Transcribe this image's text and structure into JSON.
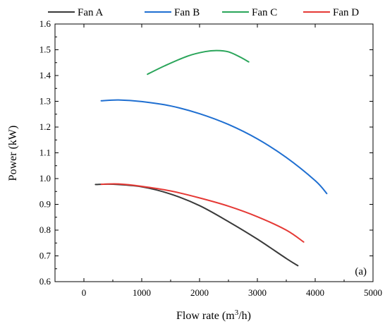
{
  "chart_data": {
    "type": "line",
    "title": "",
    "xlabel": "Flow rate (m",
    "xlabel_sup": "3",
    "xlabel_suffix": "/h)",
    "ylabel": "Power (kW)",
    "panel_label": "(a)",
    "xlim": [
      -500,
      5000
    ],
    "ylim": [
      0.6,
      1.6
    ],
    "xticks": [
      0,
      1000,
      2000,
      3000,
      4000,
      5000
    ],
    "yticks": [
      0.6,
      0.7,
      0.8,
      0.9,
      1.0,
      1.1,
      1.2,
      1.3,
      1.4,
      1.5,
      1.6
    ],
    "xtick_labels": [
      "0",
      "1000",
      "2000",
      "3000",
      "4000",
      "5000"
    ],
    "ytick_labels": [
      "0.6",
      "0.7",
      "0.8",
      "0.9",
      "1.0",
      "1.1",
      "1.2",
      "1.3",
      "1.4",
      "1.5",
      "1.6"
    ],
    "grid": false,
    "legend_position": "top",
    "series": [
      {
        "name": "Fan A",
        "color": "#3a3a3a",
        "x": [
          200,
          500,
          1000,
          1500,
          2000,
          2500,
          3000,
          3500,
          3700
        ],
        "y": [
          0.977,
          0.978,
          0.968,
          0.94,
          0.895,
          0.833,
          0.765,
          0.69,
          0.662
        ]
      },
      {
        "name": "Fan B",
        "color": "#1f6fd1",
        "x": [
          300,
          600,
          1000,
          1500,
          2000,
          2500,
          3000,
          3500,
          4000,
          4200
        ],
        "y": [
          1.302,
          1.305,
          1.299,
          1.282,
          1.252,
          1.21,
          1.154,
          1.082,
          0.992,
          0.942
        ]
      },
      {
        "name": "Fan C",
        "color": "#2aa55a",
        "x": [
          1100,
          1400,
          1800,
          2100,
          2300,
          2500,
          2700,
          2850
        ],
        "y": [
          1.405,
          1.438,
          1.476,
          1.493,
          1.497,
          1.492,
          1.472,
          1.453
        ]
      },
      {
        "name": "Fan D",
        "color": "#e53935",
        "x": [
          300,
          600,
          1000,
          1500,
          2000,
          2500,
          3000,
          3500,
          3800
        ],
        "y": [
          0.978,
          0.979,
          0.97,
          0.952,
          0.925,
          0.893,
          0.852,
          0.8,
          0.754
        ]
      }
    ]
  }
}
